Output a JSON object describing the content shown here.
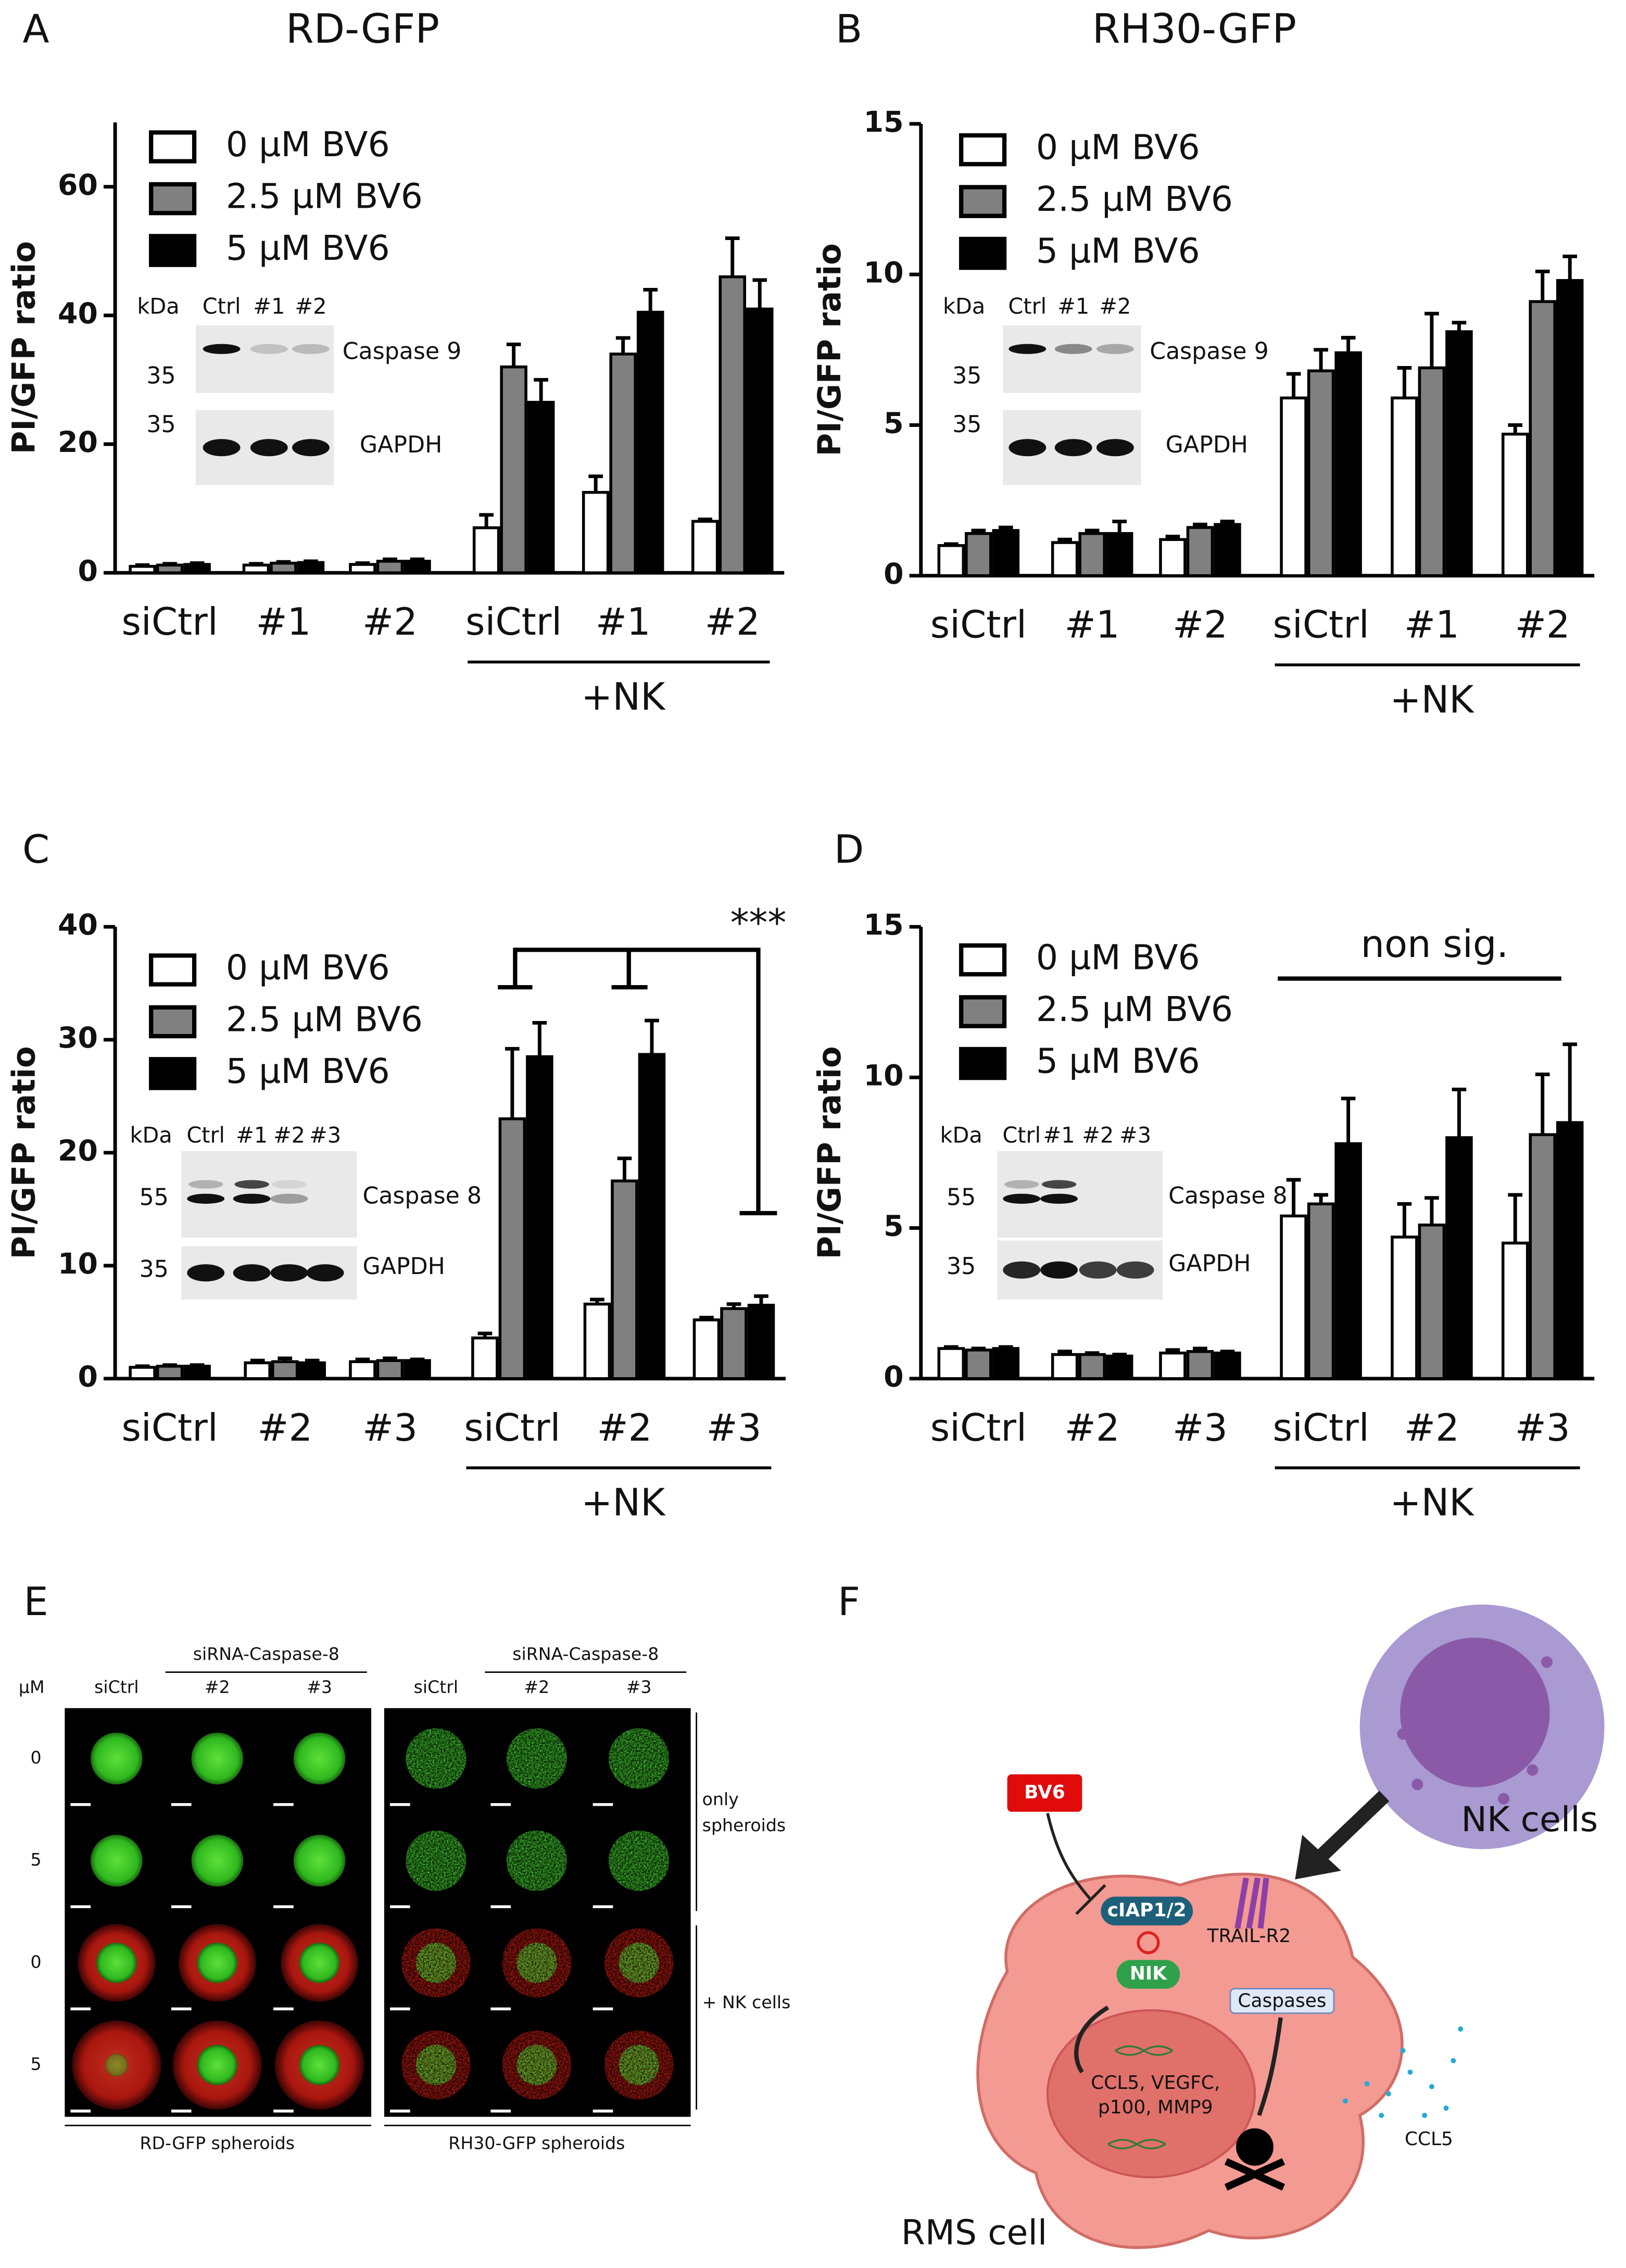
{
  "chart_data": [
    {
      "type": "bar",
      "panel": "A",
      "title": "RD-GFP",
      "ylabel": "PI/GFP ratio",
      "categories": [
        "siCtrl",
        "#1",
        "#2",
        "siCtrl",
        "#1",
        "#2"
      ],
      "group_label": "+NK",
      "ylim": [
        0,
        70
      ],
      "yticks": [
        0,
        20,
        40,
        60
      ],
      "series": [
        {
          "name": "0 µM BV6",
          "color": "#ffffff",
          "values": [
            1.0,
            1.2,
            1.3,
            7.0,
            12.5,
            8.0
          ],
          "errors": [
            0.2,
            0.2,
            0.2,
            2.0,
            2.5,
            0.3
          ]
        },
        {
          "name": "2.5 µM BV6",
          "color": "#808080",
          "values": [
            1.2,
            1.5,
            1.8,
            32.0,
            34.0,
            46.0
          ],
          "errors": [
            0.2,
            0.2,
            0.3,
            3.5,
            2.5,
            6.0
          ]
        },
        {
          "name": "5 µM BV6",
          "color": "#000000",
          "values": [
            1.3,
            1.6,
            1.8,
            26.5,
            40.5,
            41.0
          ],
          "errors": [
            0.2,
            0.2,
            0.3,
            3.5,
            3.5,
            4.5
          ]
        }
      ],
      "inset": {
        "unit": "kDa",
        "lanes": [
          "Ctrl",
          "#1",
          "#2"
        ],
        "markers": [
          "35",
          "35"
        ],
        "proteins": [
          "Caspase 9",
          "GAPDH"
        ]
      }
    },
    {
      "type": "bar",
      "panel": "B",
      "title": "RH30-GFP",
      "ylabel": "PI/GFP ratio",
      "categories": [
        "siCtrl",
        "#1",
        "#2",
        "siCtrl",
        "#1",
        "#2"
      ],
      "group_label": "+NK",
      "ylim": [
        0,
        15
      ],
      "yticks": [
        0,
        5,
        10,
        15
      ],
      "series": [
        {
          "name": "0 µM BV6",
          "color": "#ffffff",
          "values": [
            1.0,
            1.1,
            1.2,
            5.9,
            5.9,
            4.7
          ],
          "errors": [
            0.05,
            0.1,
            0.1,
            0.8,
            1.0,
            0.3
          ]
        },
        {
          "name": "2.5 µM BV6",
          "color": "#808080",
          "values": [
            1.4,
            1.4,
            1.6,
            6.8,
            6.9,
            9.1
          ],
          "errors": [
            0.1,
            0.1,
            0.1,
            0.7,
            1.8,
            1.0
          ]
        },
        {
          "name": "5 µM BV6",
          "color": "#000000",
          "values": [
            1.5,
            1.4,
            1.7,
            7.4,
            8.1,
            9.8
          ],
          "errors": [
            0.1,
            0.4,
            0.1,
            0.5,
            0.3,
            0.8
          ]
        }
      ],
      "inset": {
        "unit": "kDa",
        "lanes": [
          "Ctrl",
          "#1",
          "#2"
        ],
        "markers": [
          "35",
          "35"
        ],
        "proteins": [
          "Caspase 9",
          "GAPDH"
        ]
      }
    },
    {
      "type": "bar",
      "panel": "C",
      "ylabel": "PI/GFP ratio",
      "categories": [
        "siCtrl",
        "#2",
        "#3",
        "siCtrl",
        "#2",
        "#3"
      ],
      "group_label": "+NK",
      "ylim": [
        0,
        40
      ],
      "yticks": [
        0,
        10,
        20,
        30,
        40
      ],
      "series": [
        {
          "name": "0 µM BV6",
          "color": "#ffffff",
          "values": [
            1.0,
            1.4,
            1.5,
            3.6,
            6.6,
            5.2
          ],
          "errors": [
            0.1,
            0.2,
            0.2,
            0.4,
            0.4,
            0.2
          ]
        },
        {
          "name": "2.5 µM BV6",
          "color": "#808080",
          "values": [
            1.1,
            1.5,
            1.6,
            23.0,
            17.5,
            6.2
          ],
          "errors": [
            0.1,
            0.3,
            0.2,
            6.2,
            2.0,
            0.4
          ]
        },
        {
          "name": "5 µM BV6",
          "color": "#000000",
          "values": [
            1.1,
            1.4,
            1.6,
            28.5,
            28.7,
            6.5
          ],
          "errors": [
            0.1,
            0.2,
            0.1,
            3.0,
            3.0,
            0.8
          ]
        }
      ],
      "annotation": "***",
      "inset": {
        "unit": "kDa",
        "lanes": [
          "Ctrl",
          "#1",
          "#2",
          "#3"
        ],
        "markers": [
          "55",
          "35"
        ],
        "proteins": [
          "Caspase 8",
          "GAPDH"
        ]
      }
    },
    {
      "type": "bar",
      "panel": "D",
      "ylabel": "PI/GFP ratio",
      "categories": [
        "siCtrl",
        "#2",
        "#3",
        "siCtrl",
        "#2",
        "#3"
      ],
      "group_label": "+NK",
      "ylim": [
        0,
        15
      ],
      "yticks": [
        0,
        5,
        10,
        15
      ],
      "series": [
        {
          "name": "0 µM BV6",
          "color": "#ffffff",
          "values": [
            1.0,
            0.8,
            0.85,
            5.4,
            4.7,
            4.5
          ],
          "errors": [
            0.05,
            0.1,
            0.1,
            1.2,
            1.1,
            1.6
          ]
        },
        {
          "name": "2.5 µM BV6",
          "color": "#808080",
          "values": [
            0.95,
            0.8,
            0.9,
            5.8,
            5.1,
            8.1
          ],
          "errors": [
            0.05,
            0.05,
            0.1,
            0.3,
            0.9,
            2.0
          ]
        },
        {
          "name": "5 µM BV6",
          "color": "#000000",
          "values": [
            1.0,
            0.75,
            0.85,
            7.8,
            8.0,
            8.5
          ],
          "errors": [
            0.05,
            0.05,
            0.05,
            1.5,
            1.6,
            2.6
          ]
        }
      ],
      "annotation": "non sig.",
      "inset": {
        "unit": "kDa",
        "lanes": [
          "Ctrl",
          "#1",
          "#2",
          "#3"
        ],
        "markers": [
          "55",
          "35"
        ],
        "proteins": [
          "Caspase 8",
          "GAPDH"
        ]
      }
    }
  ],
  "panel_e": {
    "letter": "E",
    "unit": "µM",
    "rows": [
      "0",
      "5",
      "0",
      "5"
    ],
    "groups": [
      {
        "header": "siRNA-Caspase-8",
        "columns": [
          "siCtrl",
          "#2",
          "#3"
        ],
        "caption": "RD-GFP spheroids"
      },
      {
        "header": "siRNA-Caspase-8",
        "columns": [
          "siCtrl",
          "#2",
          "#3"
        ],
        "caption": "RH30-GFP spheroids"
      }
    ],
    "conditions": [
      [
        "only",
        "spheroids"
      ],
      [
        "+ NK cells"
      ]
    ]
  },
  "panel_f": {
    "letter": "F",
    "drug": "BV6",
    "inhibitor": "cIAP1/2",
    "kinase": "NIK",
    "receptor": "TRAIL-R2",
    "caspases": "Caspases",
    "genes": [
      "CCL5, VEGFC,",
      "p100, MMP9"
    ],
    "secreted": "CCL5",
    "effector": "NK cells",
    "target": "RMS cell"
  }
}
